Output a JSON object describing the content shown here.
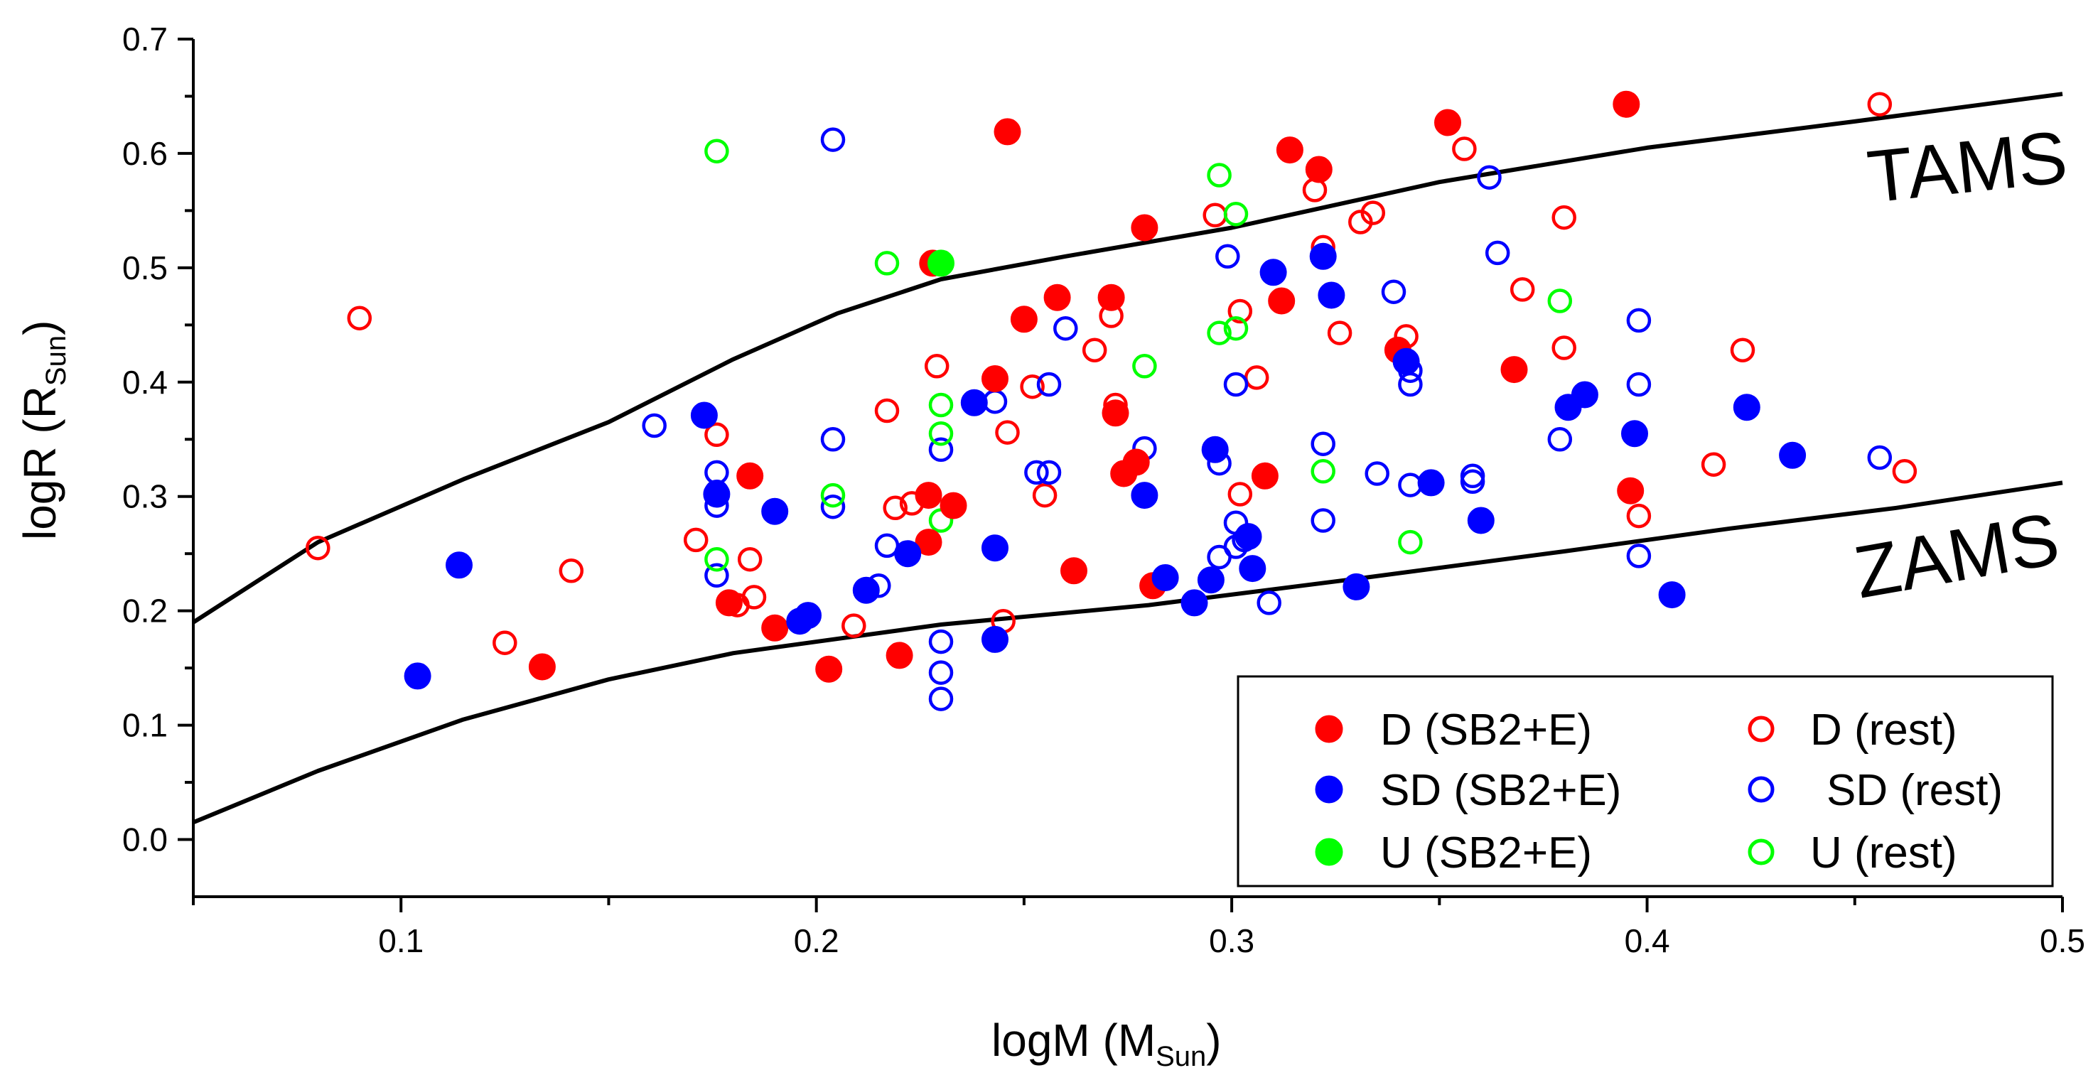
{
  "chart_data": {
    "type": "scatter",
    "xlabel": "logM (M",
    "xlabel_sub": "Sun",
    "xlabel_end": ")",
    "ylabel": "logR (R",
    "ylabel_sub": "Sun",
    "ylabel_end": ")",
    "xlim": [
      0.05,
      0.5
    ],
    "ylim": [
      -0.05,
      0.7
    ],
    "xticks": [
      0.1,
      0.2,
      0.3,
      0.4,
      0.5
    ],
    "yticks": [
      0.0,
      0.1,
      0.2,
      0.3,
      0.4,
      0.5,
      0.6,
      0.7
    ],
    "xtick_labels": [
      "0.1",
      "0.2",
      "0.3",
      "0.4",
      "0.5"
    ],
    "ytick_labels": [
      "0.0",
      "0.1",
      "0.2",
      "0.3",
      "0.4",
      "0.5",
      "0.6",
      "0.7"
    ],
    "grid": false,
    "legend_position": "bottom-right",
    "curves": [
      {
        "name": "TAMS",
        "color": "#000000",
        "x": [
          0.05,
          0.08,
          0.115,
          0.15,
          0.18,
          0.205,
          0.23,
          0.26,
          0.3,
          0.35,
          0.4,
          0.45,
          0.5
        ],
        "y": [
          0.19,
          0.26,
          0.315,
          0.365,
          0.42,
          0.46,
          0.49,
          0.51,
          0.535,
          0.575,
          0.605,
          0.628,
          0.652
        ]
      },
      {
        "name": "ZAMS",
        "color": "#000000",
        "x": [
          0.05,
          0.08,
          0.115,
          0.15,
          0.18,
          0.23,
          0.28,
          0.33,
          0.38,
          0.42,
          0.46,
          0.5
        ],
        "y": [
          0.015,
          0.06,
          0.105,
          0.14,
          0.163,
          0.188,
          0.205,
          0.228,
          0.252,
          0.272,
          0.29,
          0.312
        ]
      }
    ],
    "series": [
      {
        "name": "D (SB2+E)",
        "color": "#ff0000",
        "filled": true,
        "points": [
          [
            0.134,
            0.151
          ],
          [
            0.179,
            0.207
          ],
          [
            0.184,
            0.318
          ],
          [
            0.19,
            0.185
          ],
          [
            0.203,
            0.149
          ],
          [
            0.22,
            0.161
          ],
          [
            0.227,
            0.301
          ],
          [
            0.227,
            0.26
          ],
          [
            0.228,
            0.504
          ],
          [
            0.233,
            0.292
          ],
          [
            0.243,
            0.403
          ],
          [
            0.246,
            0.619
          ],
          [
            0.25,
            0.455
          ],
          [
            0.258,
            0.474
          ],
          [
            0.262,
            0.235
          ],
          [
            0.271,
            0.474
          ],
          [
            0.272,
            0.373
          ],
          [
            0.274,
            0.32
          ],
          [
            0.277,
            0.33
          ],
          [
            0.279,
            0.535
          ],
          [
            0.281,
            0.222
          ],
          [
            0.308,
            0.318
          ],
          [
            0.312,
            0.471
          ],
          [
            0.314,
            0.603
          ],
          [
            0.321,
            0.586
          ],
          [
            0.34,
            0.428
          ],
          [
            0.352,
            0.627
          ],
          [
            0.368,
            0.411
          ],
          [
            0.395,
            0.643
          ],
          [
            0.396,
            0.305
          ]
        ]
      },
      {
        "name": "D (rest)",
        "color": "#ff0000",
        "filled": false,
        "points": [
          [
            0.08,
            0.255
          ],
          [
            0.09,
            0.456
          ],
          [
            0.125,
            0.172
          ],
          [
            0.141,
            0.235
          ],
          [
            0.171,
            0.262
          ],
          [
            0.176,
            0.354
          ],
          [
            0.181,
            0.205
          ],
          [
            0.184,
            0.245
          ],
          [
            0.185,
            0.212
          ],
          [
            0.209,
            0.187
          ],
          [
            0.217,
            0.375
          ],
          [
            0.219,
            0.29
          ],
          [
            0.223,
            0.294
          ],
          [
            0.229,
            0.414
          ],
          [
            0.245,
            0.191
          ],
          [
            0.246,
            0.356
          ],
          [
            0.252,
            0.396
          ],
          [
            0.255,
            0.301
          ],
          [
            0.267,
            0.428
          ],
          [
            0.271,
            0.458
          ],
          [
            0.272,
            0.38
          ],
          [
            0.296,
            0.546
          ],
          [
            0.302,
            0.462
          ],
          [
            0.302,
            0.302
          ],
          [
            0.306,
            0.404
          ],
          [
            0.32,
            0.568
          ],
          [
            0.322,
            0.518
          ],
          [
            0.326,
            0.443
          ],
          [
            0.331,
            0.54
          ],
          [
            0.334,
            0.548
          ],
          [
            0.342,
            0.44
          ],
          [
            0.356,
            0.604
          ],
          [
            0.37,
            0.481
          ],
          [
            0.38,
            0.544
          ],
          [
            0.38,
            0.43
          ],
          [
            0.398,
            0.283
          ],
          [
            0.416,
            0.328
          ],
          [
            0.423,
            0.428
          ],
          [
            0.456,
            0.643
          ],
          [
            0.462,
            0.322
          ]
        ]
      },
      {
        "name": "SD (SB2+E)",
        "color": "#0000ff",
        "filled": true,
        "points": [
          [
            0.104,
            0.143
          ],
          [
            0.114,
            0.24
          ],
          [
            0.173,
            0.371
          ],
          [
            0.176,
            0.302
          ],
          [
            0.19,
            0.287
          ],
          [
            0.196,
            0.191
          ],
          [
            0.198,
            0.196
          ],
          [
            0.212,
            0.218
          ],
          [
            0.222,
            0.25
          ],
          [
            0.238,
            0.382
          ],
          [
            0.243,
            0.255
          ],
          [
            0.243,
            0.175
          ],
          [
            0.279,
            0.301
          ],
          [
            0.284,
            0.229
          ],
          [
            0.291,
            0.207
          ],
          [
            0.295,
            0.227
          ],
          [
            0.296,
            0.341
          ],
          [
            0.304,
            0.265
          ],
          [
            0.305,
            0.237
          ],
          [
            0.31,
            0.496
          ],
          [
            0.322,
            0.51
          ],
          [
            0.324,
            0.476
          ],
          [
            0.33,
            0.221
          ],
          [
            0.342,
            0.418
          ],
          [
            0.348,
            0.312
          ],
          [
            0.36,
            0.279
          ],
          [
            0.381,
            0.378
          ],
          [
            0.385,
            0.389
          ],
          [
            0.397,
            0.355
          ],
          [
            0.406,
            0.214
          ],
          [
            0.424,
            0.378
          ],
          [
            0.435,
            0.336
          ]
        ]
      },
      {
        "name": "SD (rest)",
        "color": "#0000ff",
        "filled": false,
        "points": [
          [
            0.161,
            0.362
          ],
          [
            0.176,
            0.321
          ],
          [
            0.176,
            0.304
          ],
          [
            0.176,
            0.292
          ],
          [
            0.176,
            0.231
          ],
          [
            0.204,
            0.612
          ],
          [
            0.204,
            0.35
          ],
          [
            0.204,
            0.291
          ],
          [
            0.215,
            0.222
          ],
          [
            0.217,
            0.257
          ],
          [
            0.23,
            0.341
          ],
          [
            0.23,
            0.173
          ],
          [
            0.23,
            0.146
          ],
          [
            0.23,
            0.123
          ],
          [
            0.243,
            0.383
          ],
          [
            0.253,
            0.321
          ],
          [
            0.256,
            0.321
          ],
          [
            0.256,
            0.398
          ],
          [
            0.26,
            0.447
          ],
          [
            0.279,
            0.342
          ],
          [
            0.297,
            0.329
          ],
          [
            0.297,
            0.247
          ],
          [
            0.299,
            0.51
          ],
          [
            0.301,
            0.398
          ],
          [
            0.301,
            0.277
          ],
          [
            0.301,
            0.256
          ],
          [
            0.303,
            0.262
          ],
          [
            0.309,
            0.207
          ],
          [
            0.322,
            0.346
          ],
          [
            0.322,
            0.279
          ],
          [
            0.335,
            0.32
          ],
          [
            0.339,
            0.479
          ],
          [
            0.343,
            0.41
          ],
          [
            0.343,
            0.398
          ],
          [
            0.343,
            0.31
          ],
          [
            0.358,
            0.318
          ],
          [
            0.358,
            0.313
          ],
          [
            0.362,
            0.579
          ],
          [
            0.364,
            0.513
          ],
          [
            0.379,
            0.35
          ],
          [
            0.398,
            0.454
          ],
          [
            0.398,
            0.398
          ],
          [
            0.398,
            0.248
          ],
          [
            0.456,
            0.334
          ]
        ]
      },
      {
        "name": "U (SB2+E)",
        "color": "#00ff00",
        "filled": true,
        "points": [
          [
            0.23,
            0.504
          ]
        ]
      },
      {
        "name": "U (rest)",
        "color": "#00ff00",
        "filled": false,
        "points": [
          [
            0.176,
            0.602
          ],
          [
            0.176,
            0.245
          ],
          [
            0.204,
            0.301
          ],
          [
            0.217,
            0.504
          ],
          [
            0.23,
            0.38
          ],
          [
            0.23,
            0.355
          ],
          [
            0.23,
            0.279
          ],
          [
            0.279,
            0.414
          ],
          [
            0.297,
            0.581
          ],
          [
            0.297,
            0.443
          ],
          [
            0.301,
            0.547
          ],
          [
            0.301,
            0.447
          ],
          [
            0.322,
            0.322
          ],
          [
            0.343,
            0.26
          ],
          [
            0.379,
            0.471
          ]
        ]
      }
    ]
  }
}
